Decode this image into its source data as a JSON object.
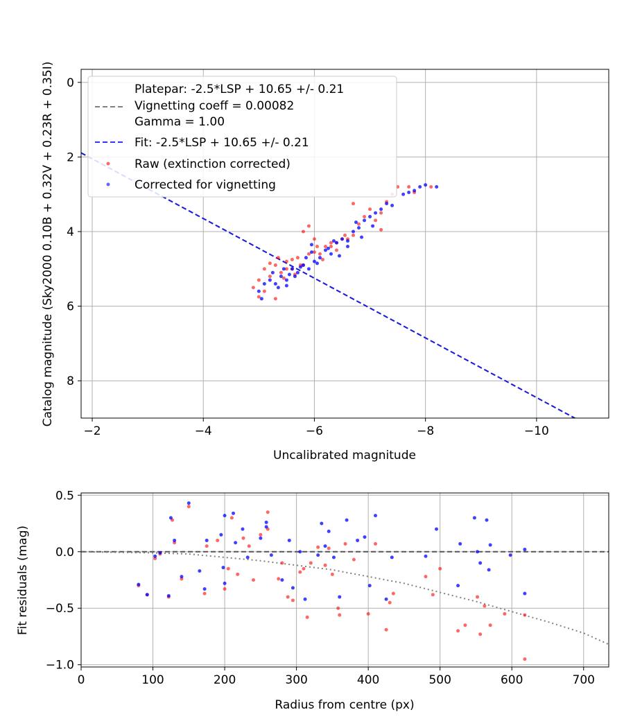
{
  "chart_data": [
    {
      "type": "scatter",
      "xlabel": "Uncalibrated magnitude",
      "ylabel": "Catalog magnitude (Sky2000 0.10B + 0.32V + 0.23R + 0.35I)",
      "xlim": [
        -1.8,
        -11.3
      ],
      "ylim": [
        9.0,
        -0.35
      ],
      "x_inverted": true,
      "y_inverted": true,
      "x_ticks": [
        -2,
        -4,
        -6,
        -8,
        -10
      ],
      "x_tick_labels": [
        "−2",
        "−4",
        "−6",
        "−8",
        "−10"
      ],
      "y_ticks": [
        0,
        2,
        4,
        6,
        8
      ],
      "y_tick_labels": [
        "0",
        "2",
        "4",
        "6",
        "8"
      ],
      "grid": true,
      "legend_position": "top-left",
      "legend": [
        "Platepar: -2.5*LSP + 10.65 +/- 0.21",
        "Vignetting coeff = 0.00082",
        "Gamma = 1.00",
        "Fit: -2.5*LSP + 10.65 +/- 0.21",
        "Raw (extinction corrected)",
        "Corrected for vignetting"
      ],
      "lines": [
        {
          "name": "Platepar: -2.5*LSP + 10.65 +/- 0.21",
          "style": "dashed",
          "color": "#808080",
          "slope": -0.8,
          "intercept": 0.45
        },
        {
          "name": "Fit: -2.5*LSP + 10.65 +/- 0.21",
          "style": "dashed",
          "color": "#0000ff",
          "slope": -0.8,
          "intercept": 0.45
        }
      ],
      "series": [
        {
          "name": "Raw (extinction corrected)",
          "color": "#ff0000",
          "points": [
            [
              -4.9,
              5.5
            ],
            [
              -5.0,
              5.3
            ],
            [
              -5.1,
              5.0
            ],
            [
              -5.2,
              5.2
            ],
            [
              -5.3,
              4.9
            ],
            [
              -5.4,
              5.1
            ],
            [
              -5.5,
              4.8
            ],
            [
              -5.6,
              5.0
            ],
            [
              -5.7,
              4.7
            ],
            [
              -5.8,
              4.9
            ],
            [
              -5.9,
              4.6
            ],
            [
              -6.0,
              4.2
            ],
            [
              -6.1,
              4.6
            ],
            [
              -6.2,
              4.4
            ],
            [
              -6.3,
              4.4
            ],
            [
              -6.4,
              4.3
            ],
            [
              -6.5,
              4.2
            ],
            [
              -6.6,
              4.2
            ],
            [
              -6.7,
              4.1
            ],
            [
              -6.8,
              3.8
            ],
            [
              -6.9,
              3.6
            ],
            [
              -7.0,
              3.4
            ],
            [
              -7.1,
              3.7
            ],
            [
              -7.2,
              3.5
            ],
            [
              -7.3,
              3.2
            ],
            [
              -7.5,
              2.8
            ],
            [
              -7.7,
              2.8
            ],
            [
              -7.8,
              2.95
            ],
            [
              -8.1,
              2.8
            ],
            [
              -5.1,
              5.6
            ],
            [
              -5.3,
              5.8
            ],
            [
              -5.45,
              5.25
            ],
            [
              -5.6,
              4.75
            ],
            [
              -5.75,
              4.9
            ],
            [
              -5.8,
              4.0
            ],
            [
              -5.9,
              3.85
            ],
            [
              -6.05,
              4.4
            ],
            [
              -6.15,
              4.75
            ],
            [
              -6.3,
              4.3
            ],
            [
              -5.0,
              5.75
            ],
            [
              -5.2,
              4.85
            ],
            [
              -5.35,
              4.7
            ],
            [
              -5.5,
              5.0
            ],
            [
              -5.65,
              5.15
            ],
            [
              -6.0,
              4.55
            ],
            [
              -6.4,
              4.5
            ],
            [
              -6.7,
              3.25
            ],
            [
              -7.4,
              3.0
            ],
            [
              -7.2,
              3.95
            ],
            [
              -6.55,
              4.1
            ]
          ]
        },
        {
          "name": "Corrected for vignetting",
          "color": "#0000ff",
          "points": [
            [
              -5.0,
              5.6
            ],
            [
              -5.1,
              5.4
            ],
            [
              -5.2,
              5.3
            ],
            [
              -5.3,
              5.4
            ],
            [
              -5.4,
              5.2
            ],
            [
              -5.5,
              5.3
            ],
            [
              -5.6,
              5.0
            ],
            [
              -5.7,
              5.1
            ],
            [
              -5.8,
              4.9
            ],
            [
              -5.9,
              5.0
            ],
            [
              -6.0,
              4.8
            ],
            [
              -6.1,
              4.7
            ],
            [
              -6.2,
              4.5
            ],
            [
              -6.3,
              4.6
            ],
            [
              -6.4,
              4.3
            ],
            [
              -6.5,
              4.2
            ],
            [
              -6.6,
              4.4
            ],
            [
              -6.7,
              4.0
            ],
            [
              -6.8,
              3.9
            ],
            [
              -6.9,
              3.7
            ],
            [
              -7.0,
              3.6
            ],
            [
              -7.1,
              3.5
            ],
            [
              -7.2,
              3.4
            ],
            [
              -7.4,
              3.3
            ],
            [
              -7.6,
              3.0
            ],
            [
              -7.8,
              2.9
            ],
            [
              -7.9,
              2.8
            ],
            [
              -8.2,
              2.8
            ],
            [
              -5.05,
              5.8
            ],
            [
              -5.35,
              5.5
            ],
            [
              -5.5,
              5.45
            ],
            [
              -5.65,
              5.2
            ],
            [
              -5.75,
              4.95
            ],
            [
              -5.85,
              4.7
            ],
            [
              -5.95,
              4.55
            ],
            [
              -6.05,
              4.85
            ],
            [
              -6.25,
              4.45
            ],
            [
              -6.45,
              4.65
            ],
            [
              -5.25,
              5.1
            ],
            [
              -5.45,
              5.0
            ],
            [
              -5.55,
              5.15
            ],
            [
              -5.95,
              4.35
            ],
            [
              -6.35,
              4.25
            ],
            [
              -6.6,
              4.25
            ],
            [
              -6.85,
              4.15
            ],
            [
              -7.05,
              3.85
            ],
            [
              -7.3,
              3.25
            ],
            [
              -7.7,
              2.95
            ],
            [
              -8.0,
              2.75
            ],
            [
              -6.75,
              3.75
            ]
          ]
        }
      ]
    },
    {
      "type": "scatter",
      "xlabel": "Radius from centre (px)",
      "ylabel": "Fit residuals (mag)",
      "xlim": [
        0,
        735
      ],
      "ylim": [
        -1.02,
        0.52
      ],
      "x_ticks": [
        0,
        100,
        200,
        300,
        400,
        500,
        600,
        700
      ],
      "x_tick_labels": [
        "0",
        "100",
        "200",
        "300",
        "400",
        "500",
        "600",
        "700"
      ],
      "y_ticks": [
        0.5,
        0.0,
        -0.5,
        -1.0
      ],
      "y_tick_labels": [
        "0.5",
        "0.0",
        "−0.5",
        "−1.0"
      ],
      "grid": true,
      "lines": [
        {
          "name": "zero",
          "style": "dashed",
          "color": "#555555",
          "type": "hline",
          "y": 0.0
        },
        {
          "name": "vignetting",
          "style": "dotted",
          "color": "#808080",
          "type": "curve",
          "points": [
            [
              0,
              0.0
            ],
            [
              100,
              -0.01
            ],
            [
              150,
              -0.02
            ],
            [
              200,
              -0.05
            ],
            [
              250,
              -0.08
            ],
            [
              300,
              -0.12
            ],
            [
              350,
              -0.16
            ],
            [
              400,
              -0.22
            ],
            [
              450,
              -0.28
            ],
            [
              500,
              -0.36
            ],
            [
              550,
              -0.44
            ],
            [
              600,
              -0.53
            ],
            [
              650,
              -0.62
            ],
            [
              700,
              -0.72
            ],
            [
              735,
              -0.82
            ]
          ]
        }
      ],
      "series": [
        {
          "name": "Raw (extinction corrected)",
          "color": "#ff0000",
          "points": [
            [
              80,
              -0.3
            ],
            [
              92,
              -0.38
            ],
            [
              103,
              -0.06
            ],
            [
              110,
              -0.02
            ],
            [
              122,
              -0.4
            ],
            [
              127,
              0.28
            ],
            [
              130,
              0.08
            ],
            [
              140,
              -0.24
            ],
            [
              150,
              0.4
            ],
            [
              172,
              -0.37
            ],
            [
              175,
              0.05
            ],
            [
              190,
              0.1
            ],
            [
              200,
              -0.33
            ],
            [
              205,
              -0.15
            ],
            [
              210,
              0.3
            ],
            [
              218,
              -0.2
            ],
            [
              226,
              0.12
            ],
            [
              234,
              0.05
            ],
            [
              240,
              -0.25
            ],
            [
              250,
              0.15
            ],
            [
              260,
              0.35
            ],
            [
              275,
              -0.24
            ],
            [
              280,
              -0.1
            ],
            [
              288,
              -0.4
            ],
            [
              295,
              -0.43
            ],
            [
              305,
              -0.18
            ],
            [
              310,
              -0.15
            ],
            [
              315,
              -0.58
            ],
            [
              320,
              -0.1
            ],
            [
              330,
              0.04
            ],
            [
              340,
              -0.12
            ],
            [
              350,
              -0.2
            ],
            [
              358,
              -0.5
            ],
            [
              360,
              -0.56
            ],
            [
              368,
              0.07
            ],
            [
              380,
              -0.07
            ],
            [
              400,
              -0.55
            ],
            [
              410,
              0.07
            ],
            [
              425,
              -0.69
            ],
            [
              430,
              -0.45
            ],
            [
              435,
              -0.37
            ],
            [
              480,
              -0.22
            ],
            [
              490,
              -0.38
            ],
            [
              500,
              -0.15
            ],
            [
              525,
              -0.7
            ],
            [
              535,
              -0.65
            ],
            [
              552,
              -0.4
            ],
            [
              556,
              -0.73
            ],
            [
              562,
              -0.48
            ],
            [
              570,
              -0.65
            ],
            [
              590,
              -0.55
            ],
            [
              618,
              -0.95
            ],
            [
              618,
              -0.56
            ],
            [
              260,
              0.2
            ],
            [
              345,
              0.03
            ]
          ]
        },
        {
          "name": "Corrected for vignetting",
          "color": "#0000ff",
          "points": [
            [
              80,
              -0.29
            ],
            [
              92,
              -0.38
            ],
            [
              103,
              -0.04
            ],
            [
              110,
              -0.01
            ],
            [
              122,
              -0.39
            ],
            [
              125,
              0.3
            ],
            [
              130,
              0.1
            ],
            [
              140,
              -0.22
            ],
            [
              150,
              0.43
            ],
            [
              165,
              -0.17
            ],
            [
              172,
              -0.33
            ],
            [
              175,
              0.1
            ],
            [
              195,
              0.15
            ],
            [
              198,
              -0.14
            ],
            [
              200,
              0.32
            ],
            [
              212,
              0.34
            ],
            [
              215,
              0.08
            ],
            [
              225,
              0.2
            ],
            [
              232,
              -0.05
            ],
            [
              250,
              0.12
            ],
            [
              258,
              0.26
            ],
            [
              265,
              -0.03
            ],
            [
              280,
              -0.25
            ],
            [
              290,
              0.1
            ],
            [
              295,
              -0.32
            ],
            [
              305,
              0.0
            ],
            [
              312,
              -0.42
            ],
            [
              330,
              -0.03
            ],
            [
              335,
              0.25
            ],
            [
              345,
              0.18
            ],
            [
              352,
              -0.05
            ],
            [
              360,
              -0.4
            ],
            [
              370,
              0.28
            ],
            [
              385,
              0.1
            ],
            [
              395,
              0.13
            ],
            [
              402,
              -0.3
            ],
            [
              410,
              0.32
            ],
            [
              425,
              -0.42
            ],
            [
              433,
              -0.05
            ],
            [
              480,
              -0.04
            ],
            [
              495,
              0.2
            ],
            [
              525,
              -0.3
            ],
            [
              528,
              0.07
            ],
            [
              548,
              0.3
            ],
            [
              552,
              0.0
            ],
            [
              556,
              -0.1
            ],
            [
              565,
              0.28
            ],
            [
              568,
              -0.16
            ],
            [
              570,
              0.06
            ],
            [
              598,
              -0.03
            ],
            [
              618,
              0.02
            ],
            [
              618,
              -0.37
            ],
            [
              200,
              -0.28
            ],
            [
              258,
              0.22
            ],
            [
              340,
              0.05
            ]
          ]
        }
      ]
    }
  ]
}
